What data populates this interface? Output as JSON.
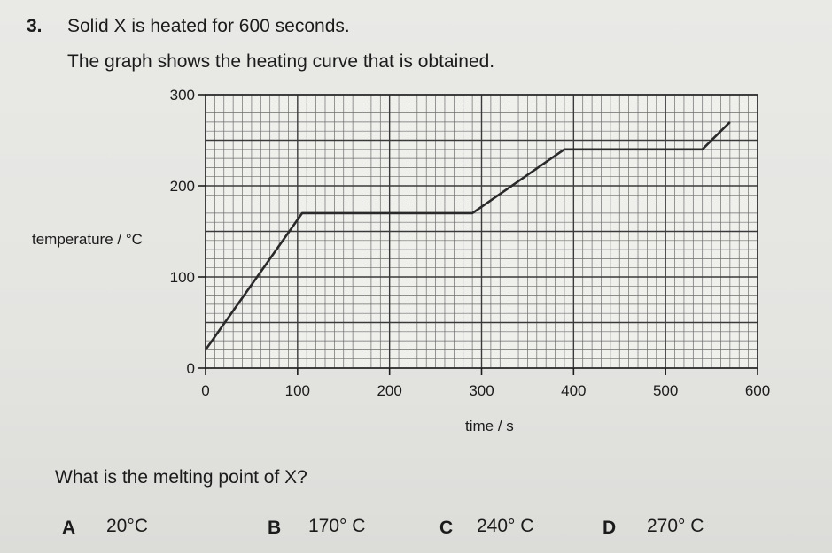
{
  "question": {
    "number": "3.",
    "line1": "Solid X is heated for 600 seconds.",
    "line2": "The graph shows the heating curve that is obtained.",
    "prompt": "What is the melting point of X?"
  },
  "options": [
    {
      "letter": "A",
      "text": "20°C"
    },
    {
      "letter": "B",
      "text": "170°  C"
    },
    {
      "letter": "C",
      "text": "240°  C"
    },
    {
      "letter": "D",
      "text": "270°  C"
    }
  ],
  "chart_data": {
    "type": "line",
    "title": "",
    "xlabel": "time / s",
    "ylabel": "temperature / °C",
    "xlim": [
      0,
      600
    ],
    "ylim": [
      0,
      300
    ],
    "x_ticks": [
      0,
      100,
      200,
      300,
      400,
      500,
      600
    ],
    "y_ticks": [
      0,
      100,
      200,
      300
    ],
    "grid": true,
    "series": [
      {
        "x": [
          0,
          0,
          105,
          290,
          390,
          540,
          570
        ],
        "y": [
          20,
          20,
          170,
          170,
          240,
          240,
          270
        ]
      }
    ],
    "colors": {
      "line": "#2a2a2a",
      "grid": "#6d6d6d",
      "grid_major": "#3a3a3a"
    }
  }
}
